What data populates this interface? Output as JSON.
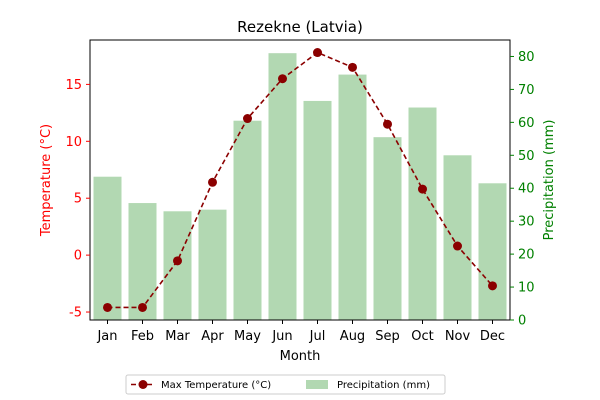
{
  "chart_data": {
    "type": "bar+line",
    "title": "Rezekne (Latvia)",
    "xlabel": "Month",
    "categories": [
      "Jan",
      "Feb",
      "Mar",
      "Apr",
      "May",
      "Jun",
      "Jul",
      "Aug",
      "Sep",
      "Oct",
      "Nov",
      "Dec"
    ],
    "left_axis": {
      "label": "Temperature (°C)",
      "color": "#ff0000",
      "ylim": [
        -5.7,
        18.9
      ],
      "ticks": [
        -5,
        0,
        5,
        10,
        15
      ]
    },
    "right_axis": {
      "label": "Precipitation (mm)",
      "color": "#008000",
      "ylim": [
        0,
        85
      ],
      "ticks": [
        0,
        10,
        20,
        30,
        40,
        50,
        60,
        70,
        80
      ]
    },
    "series": [
      {
        "name": "Max Temperature (°C)",
        "kind": "line",
        "axis": "left",
        "color": "#8b0000",
        "values": [
          -4.6,
          -4.6,
          -0.5,
          6.4,
          12.0,
          15.5,
          17.8,
          16.5,
          11.5,
          5.8,
          0.8,
          -2.7
        ]
      },
      {
        "name": "Precipitation (mm)",
        "kind": "bar",
        "axis": "right",
        "color": "#b2d8b2",
        "values": [
          43.5,
          35.5,
          33,
          33.5,
          60.5,
          81,
          66.5,
          74.5,
          55.5,
          64.5,
          50,
          41.5
        ]
      }
    ],
    "legend_position": "bottom-center",
    "grid": false
  }
}
